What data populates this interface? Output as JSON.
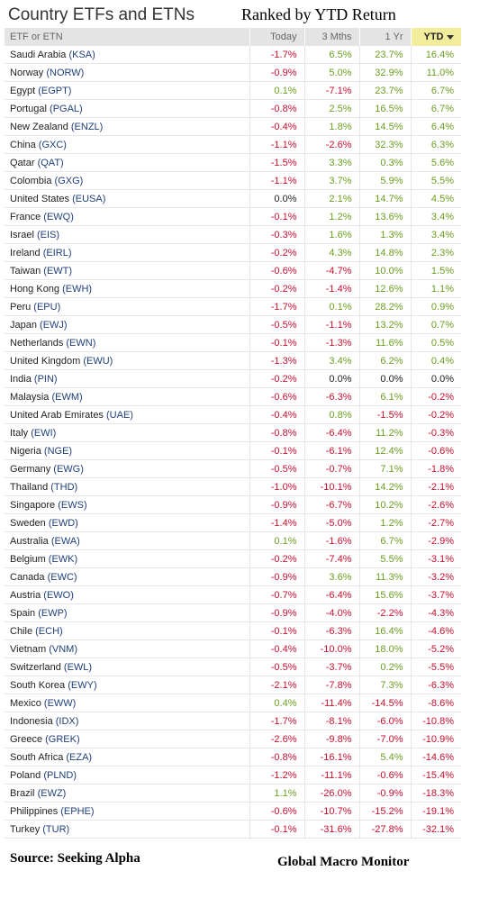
{
  "chart_data": {
    "type": "table",
    "title": "Country ETFs and ETNs",
    "subtitle": "Ranked by YTD Return",
    "columns": [
      "ETF or ETN",
      "Today",
      "3 Mths",
      "1 Yr",
      "YTD"
    ],
    "sorted_column": "YTD",
    "rows": [
      {
        "name": "Saudi Arabia",
        "ticker": "KSA",
        "today": -1.7,
        "m3": 6.5,
        "y1": 23.7,
        "ytd": 16.4
      },
      {
        "name": "Norway",
        "ticker": "NORW",
        "today": -0.9,
        "m3": 5.0,
        "y1": 32.9,
        "ytd": 11.0
      },
      {
        "name": "Egypt",
        "ticker": "EGPT",
        "today": 0.1,
        "m3": -7.1,
        "y1": 23.7,
        "ytd": 6.7
      },
      {
        "name": "Portugal",
        "ticker": "PGAL",
        "today": -0.8,
        "m3": 2.5,
        "y1": 16.5,
        "ytd": 6.7
      },
      {
        "name": "New Zealand",
        "ticker": "ENZL",
        "today": -0.4,
        "m3": 1.8,
        "y1": 14.5,
        "ytd": 6.4
      },
      {
        "name": "China",
        "ticker": "GXC",
        "today": -1.1,
        "m3": -2.6,
        "y1": 32.3,
        "ytd": 6.3
      },
      {
        "name": "Qatar",
        "ticker": "QAT",
        "today": -1.5,
        "m3": 3.3,
        "y1": 0.3,
        "ytd": 5.6
      },
      {
        "name": "Colombia",
        "ticker": "GXG",
        "today": -1.1,
        "m3": 3.7,
        "y1": 5.9,
        "ytd": 5.5
      },
      {
        "name": "United States",
        "ticker": "EUSA",
        "today": 0.0,
        "m3": 2.1,
        "y1": 14.7,
        "ytd": 4.5
      },
      {
        "name": "France",
        "ticker": "EWQ",
        "today": -0.1,
        "m3": 1.2,
        "y1": 13.6,
        "ytd": 3.4
      },
      {
        "name": "Israel",
        "ticker": "EIS",
        "today": -0.3,
        "m3": 1.6,
        "y1": 1.3,
        "ytd": 3.4
      },
      {
        "name": "Ireland",
        "ticker": "EIRL",
        "today": -0.2,
        "m3": 4.3,
        "y1": 14.8,
        "ytd": 2.3
      },
      {
        "name": "Taiwan",
        "ticker": "EWT",
        "today": -0.6,
        "m3": -4.7,
        "y1": 10.0,
        "ytd": 1.5
      },
      {
        "name": "Hong Kong",
        "ticker": "EWH",
        "today": -0.2,
        "m3": -1.4,
        "y1": 12.6,
        "ytd": 1.1
      },
      {
        "name": "Peru",
        "ticker": "EPU",
        "today": -1.7,
        "m3": 0.1,
        "y1": 28.2,
        "ytd": 0.9
      },
      {
        "name": "Japan",
        "ticker": "EWJ",
        "today": -0.5,
        "m3": -1.1,
        "y1": 13.2,
        "ytd": 0.7
      },
      {
        "name": "Netherlands",
        "ticker": "EWN",
        "today": -0.1,
        "m3": -1.3,
        "y1": 11.6,
        "ytd": 0.5
      },
      {
        "name": "United Kingdom",
        "ticker": "EWU",
        "today": -1.3,
        "m3": 3.4,
        "y1": 6.2,
        "ytd": 0.4
      },
      {
        "name": "India",
        "ticker": "PIN",
        "today": -0.2,
        "m3": 0.0,
        "y1": 0.0,
        "ytd": 0.0
      },
      {
        "name": "Malaysia",
        "ticker": "EWM",
        "today": -0.6,
        "m3": -6.3,
        "y1": 6.1,
        "ytd": -0.2
      },
      {
        "name": "United Arab Emirates",
        "ticker": "UAE",
        "today": -0.4,
        "m3": 0.8,
        "y1": -1.5,
        "ytd": -0.2
      },
      {
        "name": "Italy",
        "ticker": "EWI",
        "today": -0.8,
        "m3": -6.4,
        "y1": 11.2,
        "ytd": -0.3
      },
      {
        "name": "Nigeria",
        "ticker": "NGE",
        "today": -0.1,
        "m3": -6.1,
        "y1": 12.4,
        "ytd": -0.6
      },
      {
        "name": "Germany",
        "ticker": "EWG",
        "today": -0.5,
        "m3": -0.7,
        "y1": 7.1,
        "ytd": -1.8
      },
      {
        "name": "Thailand",
        "ticker": "THD",
        "today": -1.0,
        "m3": -10.1,
        "y1": 14.2,
        "ytd": -2.1
      },
      {
        "name": "Singapore",
        "ticker": "EWS",
        "today": -0.9,
        "m3": -6.7,
        "y1": 10.2,
        "ytd": -2.6
      },
      {
        "name": "Sweden",
        "ticker": "EWD",
        "today": -1.4,
        "m3": -5.0,
        "y1": 1.2,
        "ytd": -2.7
      },
      {
        "name": "Australia",
        "ticker": "EWA",
        "today": 0.1,
        "m3": -1.6,
        "y1": 6.7,
        "ytd": -2.9
      },
      {
        "name": "Belgium",
        "ticker": "EWK",
        "today": -0.2,
        "m3": -7.4,
        "y1": 5.5,
        "ytd": -3.1
      },
      {
        "name": "Canada",
        "ticker": "EWC",
        "today": -0.9,
        "m3": 3.6,
        "y1": 11.3,
        "ytd": -3.2
      },
      {
        "name": "Austria",
        "ticker": "EWO",
        "today": -0.7,
        "m3": -6.4,
        "y1": 15.6,
        "ytd": -3.7
      },
      {
        "name": "Spain",
        "ticker": "EWP",
        "today": -0.9,
        "m3": -4.0,
        "y1": -2.2,
        "ytd": -4.3
      },
      {
        "name": "Chile",
        "ticker": "ECH",
        "today": -0.1,
        "m3": -6.3,
        "y1": 16.4,
        "ytd": -4.6
      },
      {
        "name": "Vietnam",
        "ticker": "VNM",
        "today": -0.4,
        "m3": -10.0,
        "y1": 18.0,
        "ytd": -5.2
      },
      {
        "name": "Switzerland",
        "ticker": "EWL",
        "today": -0.5,
        "m3": -3.7,
        "y1": 0.2,
        "ytd": -5.5
      },
      {
        "name": "South Korea",
        "ticker": "EWY",
        "today": -2.1,
        "m3": -7.8,
        "y1": 7.3,
        "ytd": -6.3
      },
      {
        "name": "Mexico",
        "ticker": "EWW",
        "today": 0.4,
        "m3": -11.4,
        "y1": -14.5,
        "ytd": -8.6
      },
      {
        "name": "Indonesia",
        "ticker": "IDX",
        "today": -1.7,
        "m3": -8.1,
        "y1": -6.0,
        "ytd": -10.8
      },
      {
        "name": "Greece",
        "ticker": "GREK",
        "today": -2.6,
        "m3": -9.8,
        "y1": -7.0,
        "ytd": -10.9
      },
      {
        "name": "South Africa",
        "ticker": "EZA",
        "today": -0.8,
        "m3": -16.1,
        "y1": 5.4,
        "ytd": -14.6
      },
      {
        "name": "Poland",
        "ticker": "PLND",
        "today": -1.2,
        "m3": -11.1,
        "y1": -0.6,
        "ytd": -15.4
      },
      {
        "name": "Brazil",
        "ticker": "EWZ",
        "today": 1.1,
        "m3": -26.0,
        "y1": -0.9,
        "ytd": -18.3
      },
      {
        "name": "Philippines",
        "ticker": "EPHE",
        "today": -0.6,
        "m3": -10.7,
        "y1": -15.2,
        "ytd": -19.1
      },
      {
        "name": "Turkey",
        "ticker": "TUR",
        "today": -0.1,
        "m3": -31.6,
        "y1": -27.8,
        "ytd": -32.1
      }
    ]
  },
  "footer": {
    "source": "Source:  Seeking Alpha",
    "brand": "Global Macro Monitor"
  },
  "colors": {
    "positive": "#6b9e1f",
    "negative": "#c8102e",
    "header_bg": "#e4e4e4",
    "sorted_bg": "#f1ed9d"
  }
}
